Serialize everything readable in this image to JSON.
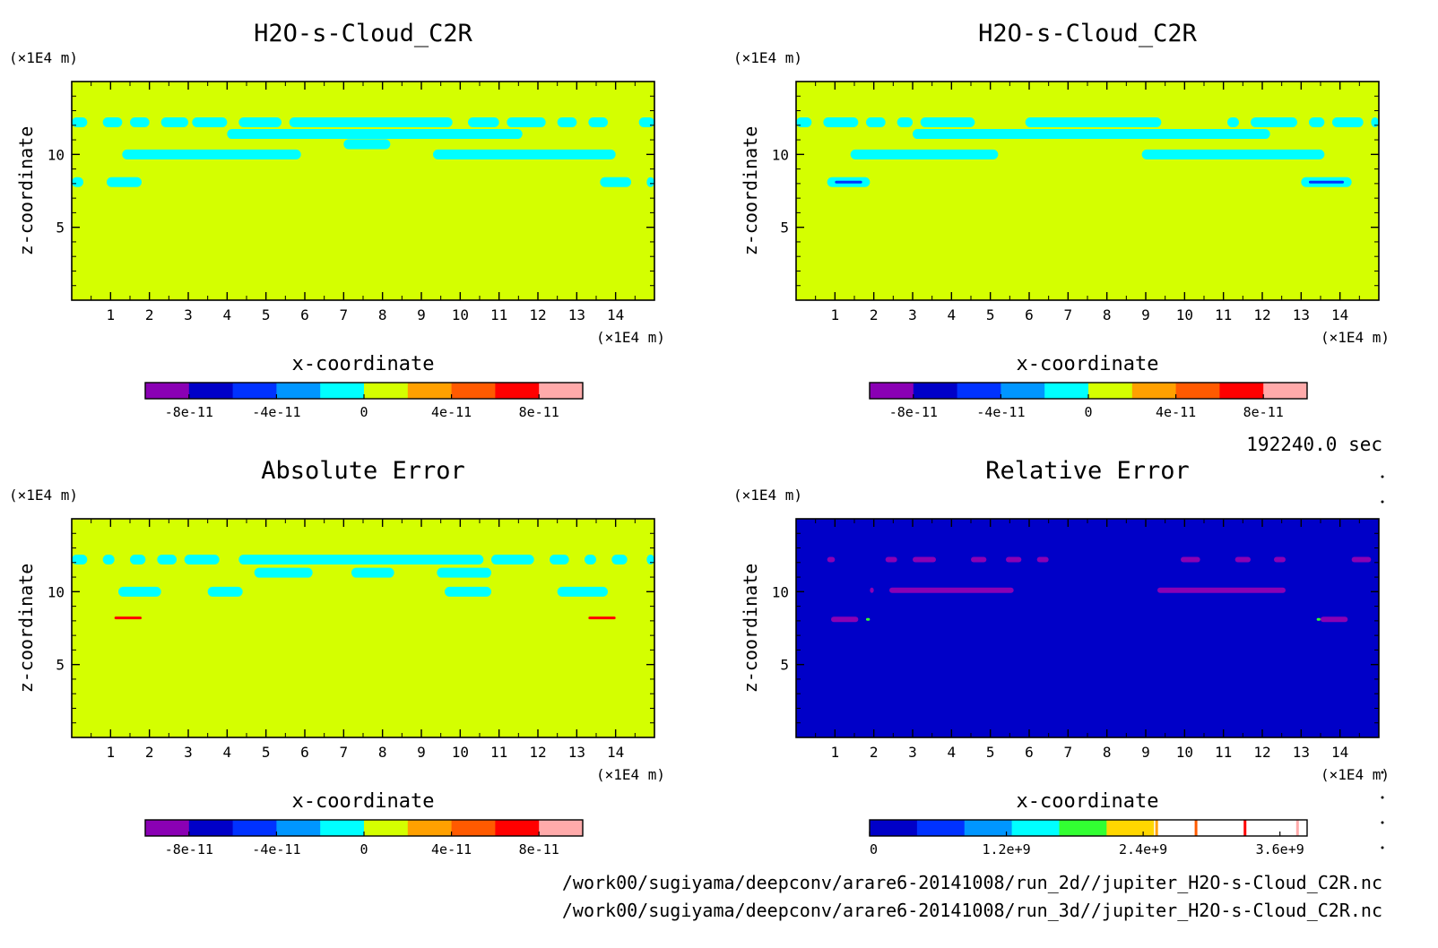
{
  "panels": [
    {
      "id": "p1",
      "title": "H2O-s-Cloud_C2R",
      "x_label": "x-coordinate",
      "z_label": "z-coordinate",
      "x_unit": "(×1E4 m)",
      "z_unit": "(×1E4 m)",
      "x_ticks": [
        "1",
        "2",
        "3",
        "4",
        "5",
        "6",
        "7",
        "8",
        "9",
        "10",
        "11",
        "12",
        "13",
        "14"
      ],
      "z_ticks": [
        "5",
        "10"
      ],
      "background": "#d4ff00",
      "colorbar_labels": [
        "-8e-11",
        "-4e-11",
        "0",
        "4e-11",
        "8e-11"
      ]
    },
    {
      "id": "p2",
      "title": "H2O-s-Cloud_C2R",
      "x_label": "x-coordinate",
      "z_label": "z-coordinate",
      "x_unit": "(×1E4 m)",
      "z_unit": "(×1E4 m)",
      "x_ticks": [
        "1",
        "2",
        "3",
        "4",
        "5",
        "6",
        "7",
        "8",
        "9",
        "10",
        "11",
        "12",
        "13",
        "14"
      ],
      "z_ticks": [
        "5",
        "10"
      ],
      "background": "#d4ff00",
      "colorbar_labels": [
        "-8e-11",
        "-4e-11",
        "0",
        "4e-11",
        "8e-11"
      ]
    },
    {
      "id": "p3",
      "title": "Absolute Error",
      "x_label": "x-coordinate",
      "z_label": "z-coordinate",
      "x_unit": "(×1E4 m)",
      "z_unit": "(×1E4 m)",
      "x_ticks": [
        "1",
        "2",
        "3",
        "4",
        "5",
        "6",
        "7",
        "8",
        "9",
        "10",
        "11",
        "12",
        "13",
        "14"
      ],
      "z_ticks": [
        "5",
        "10"
      ],
      "background": "#d4ff00",
      "colorbar_labels": [
        "-8e-11",
        "-4e-11",
        "0",
        "4e-11",
        "8e-11"
      ]
    },
    {
      "id": "p4",
      "title": "Relative Error",
      "x_label": "x-coordinate",
      "z_label": "z-coordinate",
      "x_unit": "(×1E4 m)",
      "z_unit": "(×1E4 m)",
      "x_ticks": [
        "1",
        "2",
        "3",
        "4",
        "5",
        "6",
        "7",
        "8",
        "9",
        "10",
        "11",
        "12",
        "13",
        "14"
      ],
      "z_ticks": [
        "5",
        "10"
      ],
      "background": "#0000c8",
      "colorbar_labels": [
        "0",
        "1.2e+9",
        "2.4e+9",
        "3.6e+9"
      ]
    }
  ],
  "time_label": "192240.0 sec",
  "file_paths": [
    "/work00/sugiyama/deepconv/arare6-20141008/run_2d//jupiter_H2O-s-Cloud_C2R.nc",
    "/work00/sugiyama/deepconv/arare6-20141008/run_3d//jupiter_H2O-s-Cloud_C2R.nc"
  ],
  "colors": {
    "error_scale": [
      "#8a00b4",
      "#0000c8",
      "#0032ff",
      "#0096ff",
      "#00ffff",
      "#d4ff00",
      "#ffa000",
      "#ff5a00",
      "#ff0000",
      "#ffaaaa"
    ],
    "relative_scale": [
      "#0000c8",
      "#0032ff",
      "#0096ff",
      "#00ffff",
      "#32ff32",
      "#ffd700",
      "#ffffff",
      "#ffa000",
      "#ffffff",
      "#ff5a00",
      "#ffffff",
      "#ff0000",
      "#ffffff",
      "#ffaaaa",
      "#ffffff"
    ],
    "cloud": "#00ffff",
    "relative_feature": "#8a00b4"
  },
  "chart_data": [
    {
      "type": "heatmap",
      "title": "H2O-s-Cloud_C2R",
      "xlabel": "x-coordinate",
      "ylabel": "z-coordinate",
      "xlim": [
        0,
        15
      ],
      "ylim": [
        0,
        15
      ],
      "colorbar": {
        "min": -1e-10,
        "max": 1e-10,
        "levels": 10,
        "tick_labels": [
          "-8e-11",
          "-4e-11",
          "0",
          "4e-11",
          "8e-11"
        ]
      },
      "field_value_default": 0,
      "features": [
        {
          "value": -1e-11,
          "z": 12.2,
          "x_ranges": [
            [
              0,
              0.4
            ],
            [
              0.8,
              1.3
            ],
            [
              1.5,
              2.0
            ],
            [
              2.3,
              3.0
            ],
            [
              3.1,
              4.0
            ],
            [
              4.3,
              5.4
            ],
            [
              5.6,
              9.8
            ],
            [
              10.2,
              11.0
            ],
            [
              11.2,
              12.2
            ],
            [
              12.5,
              13.0
            ],
            [
              13.3,
              13.8
            ],
            [
              14.6,
              15
            ]
          ]
        },
        {
          "value": -1e-11,
          "z": 11.4,
          "x_ranges": [
            [
              4.0,
              11.6
            ]
          ]
        },
        {
          "value": -1e-11,
          "z": 10.7,
          "x_ranges": [
            [
              7.0,
              8.2
            ]
          ]
        },
        {
          "value": -1e-11,
          "z": 10.0,
          "x_ranges": [
            [
              1.3,
              5.9
            ],
            [
              9.3,
              14.0
            ]
          ]
        },
        {
          "value": -1e-11,
          "z": 8.1,
          "x_ranges": [
            [
              0,
              0.3
            ],
            [
              0.9,
              1.8
            ],
            [
              13.6,
              14.4
            ],
            [
              14.8,
              15
            ]
          ]
        }
      ]
    },
    {
      "type": "heatmap",
      "title": "H2O-s-Cloud_C2R",
      "xlabel": "x-coordinate",
      "ylabel": "z-coordinate",
      "xlim": [
        0,
        15
      ],
      "ylim": [
        0,
        15
      ],
      "colorbar": {
        "min": -1e-10,
        "max": 1e-10,
        "levels": 10,
        "tick_labels": [
          "-8e-11",
          "-4e-11",
          "0",
          "4e-11",
          "8e-11"
        ]
      },
      "field_value_default": 0,
      "features": [
        {
          "value": -1e-11,
          "z": 12.2,
          "x_ranges": [
            [
              0,
              0.4
            ],
            [
              0.7,
              1.6
            ],
            [
              1.8,
              2.3
            ],
            [
              2.6,
              3.0
            ],
            [
              3.2,
              4.6
            ],
            [
              5.9,
              9.4
            ],
            [
              11.1,
              11.4
            ],
            [
              11.7,
              12.9
            ],
            [
              13.2,
              13.6
            ],
            [
              13.8,
              14.6
            ],
            [
              14.8,
              15
            ]
          ]
        },
        {
          "value": -1e-11,
          "z": 11.4,
          "x_ranges": [
            [
              3.0,
              12.2
            ]
          ]
        },
        {
          "value": -1e-11,
          "z": 10.0,
          "x_ranges": [
            [
              1.4,
              5.2
            ],
            [
              8.9,
              13.6
            ]
          ]
        },
        {
          "value": -1e-11,
          "z": 8.1,
          "x_ranges": [
            [
              0.8,
              1.9
            ],
            [
              13.0,
              14.3
            ]
          ]
        },
        {
          "value": -6e-11,
          "z": 8.1,
          "x_ranges": [
            [
              1.0,
              1.7
            ],
            [
              13.2,
              14.1
            ]
          ]
        }
      ]
    },
    {
      "type": "heatmap",
      "title": "Absolute Error",
      "xlabel": "x-coordinate",
      "ylabel": "z-coordinate",
      "xlim": [
        0,
        15
      ],
      "ylim": [
        0,
        15
      ],
      "colorbar": {
        "min": -1e-10,
        "max": 1e-10,
        "levels": 10,
        "tick_labels": [
          "-8e-11",
          "-4e-11",
          "0",
          "4e-11",
          "8e-11"
        ]
      },
      "field_value_default": 0,
      "features": [
        {
          "value": -1e-11,
          "z": 12.2,
          "x_ranges": [
            [
              0,
              0.4
            ],
            [
              0.8,
              1.1
            ],
            [
              1.5,
              1.9
            ],
            [
              2.2,
              2.7
            ],
            [
              2.9,
              3.8
            ],
            [
              4.3,
              10.6
            ],
            [
              10.8,
              11.9
            ],
            [
              12.3,
              12.8
            ],
            [
              13.2,
              13.5
            ],
            [
              13.9,
              14.3
            ],
            [
              14.8,
              15
            ]
          ]
        },
        {
          "value": -1e-11,
          "z": 11.3,
          "x_ranges": [
            [
              4.7,
              6.2
            ],
            [
              7.2,
              8.3
            ],
            [
              9.4,
              10.8
            ]
          ]
        },
        {
          "value": -1e-11,
          "z": 10.0,
          "x_ranges": [
            [
              1.2,
              2.3
            ],
            [
              3.5,
              4.4
            ],
            [
              9.6,
              10.8
            ],
            [
              12.5,
              13.8
            ]
          ]
        },
        {
          "value": 7e-11,
          "z": 8.2,
          "x_ranges": [
            [
              1.1,
              1.8
            ],
            [
              13.3,
              14.0
            ]
          ]
        }
      ]
    },
    {
      "type": "heatmap",
      "title": "Relative Error",
      "xlabel": "x-coordinate",
      "ylabel": "z-coordinate",
      "xlim": [
        0,
        15
      ],
      "ylim": [
        0,
        15
      ],
      "colorbar": {
        "min": 0,
        "max": 3800000000.0,
        "tick_labels": [
          "0",
          "1.2e+9",
          "2.4e+9",
          "3.6e+9"
        ]
      },
      "field_value_default": 0,
      "features": [
        {
          "value": -1,
          "z": 12.2,
          "x_ranges": [
            [
              0.8,
              1.0
            ],
            [
              2.3,
              2.6
            ],
            [
              3.0,
              3.6
            ],
            [
              4.5,
              4.9
            ],
            [
              5.4,
              5.8
            ],
            [
              6.2,
              6.5
            ],
            [
              9.9,
              10.4
            ],
            [
              11.3,
              11.7
            ],
            [
              12.3,
              12.6
            ],
            [
              14.3,
              14.8
            ]
          ]
        },
        {
          "value": -1,
          "z": 10.1,
          "x_ranges": [
            [
              1.9,
              2.0
            ],
            [
              2.4,
              5.6
            ],
            [
              9.3,
              12.6
            ]
          ]
        },
        {
          "value": -1,
          "z": 8.1,
          "x_ranges": [
            [
              0.9,
              1.6
            ],
            [
              13.5,
              14.2
            ]
          ]
        },
        {
          "value": 1700000000.0,
          "z": 8.1,
          "x_ranges": [
            [
              1.8,
              1.9
            ],
            [
              13.4,
              13.5
            ]
          ]
        }
      ]
    }
  ]
}
